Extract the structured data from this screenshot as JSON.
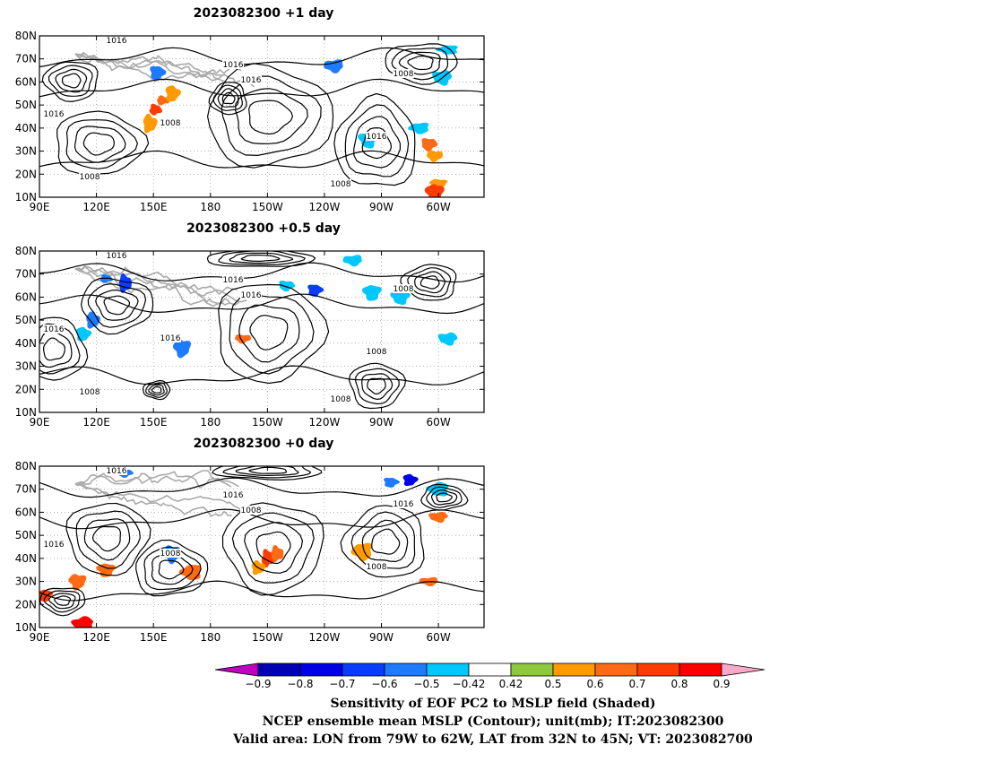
{
  "panels": [
    {
      "title": "2023082300  +1 day",
      "contour_labels": [
        "1016",
        "1016",
        "1016",
        "1016",
        "1008",
        "1008",
        "1016",
        "1008",
        "1008"
      ],
      "shading": [
        {
          "lon": 151,
          "lat": 48,
          "v": 0.7
        },
        {
          "lon": 155,
          "lat": 52,
          "v": 0.6
        },
        {
          "lon": 148,
          "lat": 42,
          "v": 0.5
        },
        {
          "lon": 160,
          "lat": 55,
          "v": 0.5
        },
        {
          "lon": 152,
          "lat": 64,
          "v": -0.6
        },
        {
          "lon": -65,
          "lat": 33,
          "v": 0.6
        },
        {
          "lon": -62,
          "lat": 28,
          "v": 0.5
        },
        {
          "lon": -60,
          "lat": 16,
          "v": 0.5
        },
        {
          "lon": -62,
          "lat": 12,
          "v": 0.7
        },
        {
          "lon": -97,
          "lat": 35,
          "v": -0.5
        },
        {
          "lon": -58,
          "lat": 62,
          "v": -0.5
        },
        {
          "lon": -115,
          "lat": 67,
          "v": -0.6
        },
        {
          "lon": -70,
          "lat": 40,
          "v": -0.5
        },
        {
          "lon": -55,
          "lat": 74,
          "v": -0.5
        }
      ]
    },
    {
      "title": "2023082300  +0.5 day",
      "contour_labels": [
        "1016",
        "1016",
        "1016",
        "1016",
        "1016",
        "1008",
        "1008",
        "1008",
        "1008"
      ],
      "shading": [
        {
          "lon": 125,
          "lat": 68,
          "v": -0.6
        },
        {
          "lon": 135,
          "lat": 66,
          "v": -0.7
        },
        {
          "lon": 118,
          "lat": 50,
          "v": -0.6
        },
        {
          "lon": 113,
          "lat": 44,
          "v": -0.5
        },
        {
          "lon": -125,
          "lat": 63,
          "v": -0.7
        },
        {
          "lon": -140,
          "lat": 65,
          "v": -0.5
        },
        {
          "lon": -163,
          "lat": 42,
          "v": 0.6
        },
        {
          "lon": 165,
          "lat": 38,
          "v": -0.6
        },
        {
          "lon": -95,
          "lat": 62,
          "v": -0.5
        },
        {
          "lon": -80,
          "lat": 60,
          "v": -0.5
        },
        {
          "lon": -55,
          "lat": 42,
          "v": -0.5
        },
        {
          "lon": -105,
          "lat": 76,
          "v": -0.5
        }
      ]
    },
    {
      "title": "2023082300  +0 day",
      "contour_labels": [
        "1016",
        "1016",
        "1008",
        "1016",
        "1008",
        "1016",
        "1008"
      ],
      "shading": [
        {
          "lon": -150,
          "lat": 40,
          "v": 0.7
        },
        {
          "lon": -145,
          "lat": 42,
          "v": 0.6
        },
        {
          "lon": -155,
          "lat": 36,
          "v": 0.5
        },
        {
          "lon": -75,
          "lat": 74,
          "v": -0.8
        },
        {
          "lon": -85,
          "lat": 73,
          "v": -0.6
        },
        {
          "lon": 135,
          "lat": 77,
          "v": -0.6
        },
        {
          "lon": 160,
          "lat": 42,
          "v": -0.6
        },
        {
          "lon": 110,
          "lat": 30,
          "v": 0.6
        },
        {
          "lon": 125,
          "lat": 35,
          "v": 0.6
        },
        {
          "lon": 92,
          "lat": 24,
          "v": 0.7
        },
        {
          "lon": -60,
          "lat": 58,
          "v": 0.6
        },
        {
          "lon": -65,
          "lat": 30,
          "v": 0.6
        },
        {
          "lon": -100,
          "lat": 43,
          "v": 0.5
        },
        {
          "lon": 170,
          "lat": 34,
          "v": 0.6
        },
        {
          "lon": -60,
          "lat": 70,
          "v": -0.5
        },
        {
          "lon": 113,
          "lat": 12,
          "v": 0.8
        }
      ]
    }
  ],
  "lat_ticks": [
    "80N",
    "70N",
    "60N",
    "50N",
    "40N",
    "30N",
    "20N",
    "10N"
  ],
  "lon_ticks": [
    "90E",
    "120E",
    "150E",
    "180",
    "150W",
    "120W",
    "90W",
    "60W"
  ],
  "colorbar": {
    "labels": [
      "−0.9",
      "−0.8",
      "−0.7",
      "−0.6",
      "−0.5",
      "−0.42",
      "0.42",
      "0.5",
      "0.6",
      "0.7",
      "0.8",
      "0.9"
    ],
    "colors": {
      "low_arrow": "#c000c0",
      "high_arrow": "#f8a8c8",
      "bins": [
        "#0000b4",
        "#0000e8",
        "#0a3cff",
        "#1e7aff",
        "#00c8ff",
        "#ffffff",
        "#8ec83c",
        "#ff9a00",
        "#ff6a14",
        "#ff3c00",
        "#ff0000"
      ]
    }
  },
  "footer": {
    "line1": "Sensitivity of EOF PC2 to MSLP field (Shaded)",
    "line2": "NCEP ensemble mean MSLP (Contour); unit(mb); IT:2023082300",
    "line3": "Valid area: LON from 79W to 62W, LAT from 32N to 45N; VT: 2023082700"
  }
}
